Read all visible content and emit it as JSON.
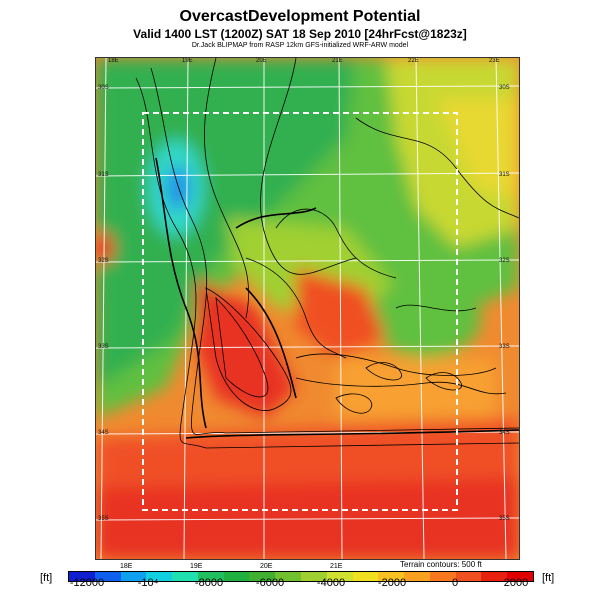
{
  "title": "OvercastDevelopment Potential",
  "subtitle": "Valid 1400 LST (1200Z) SAT 18 Sep 2010 [24hrFcst@1823z]",
  "credit": "Dr.Jack BLIPMAP from RASP 12km GFS-initialized WRF-ARW model",
  "top_ticks": [
    "18E",
    "19E",
    "20E",
    "21E",
    "22E",
    "23E"
  ],
  "bottom_ticks": [
    "18E",
    "19E",
    "20E",
    "21E"
  ],
  "left_ticks": [
    "30S",
    "31S",
    "32S",
    "33S",
    "34S",
    "35S"
  ],
  "right_ticks": [
    "30S",
    "31S",
    "32S",
    "33S",
    "34S",
    "35S"
  ],
  "terrain_note": "Terrain contours: 500 ft",
  "colorbar": {
    "unit": "[ft]",
    "labels": [
      "-12000",
      "-10⁴",
      "-8000",
      "-6000",
      "-4000",
      "-2000",
      "0",
      "2000"
    ],
    "colors": [
      "#1020d0",
      "#1060f0",
      "#10a0f0",
      "#10d0e0",
      "#20e0b0",
      "#20c060",
      "#20b040",
      "#40b030",
      "#70c030",
      "#a0d030",
      "#d0e030",
      "#f0e020",
      "#f8c020",
      "#f8a020",
      "#f87820",
      "#f05020",
      "#e82010",
      "#e00000"
    ]
  }
}
